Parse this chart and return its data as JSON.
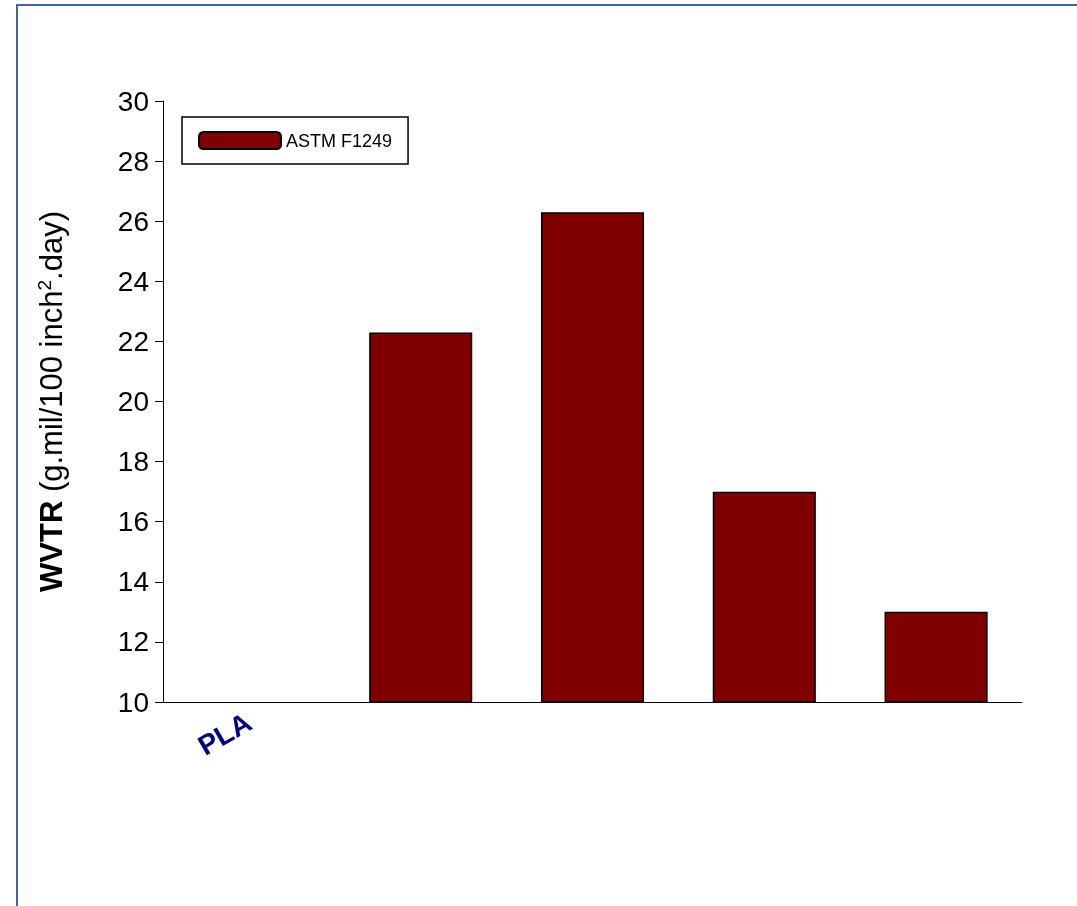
{
  "chart_data": {
    "type": "bar",
    "ylabel": "WVTR (g.mil/100 inch$^{2}$.day)",
    "categories": [
      "PLA",
      null,
      null,
      null,
      null
    ],
    "series": [
      {
        "name": "ASTM F1249",
        "color": "#800000",
        "values": [
          null,
          22.3,
          26.3,
          17.0,
          13.0
        ]
      }
    ],
    "ylim": [
      10,
      30
    ],
    "yticks": [
      10,
      12,
      14,
      16,
      18,
      20,
      22,
      24,
      26,
      28,
      30
    ],
    "grid": false,
    "legend": "top left"
  }
}
